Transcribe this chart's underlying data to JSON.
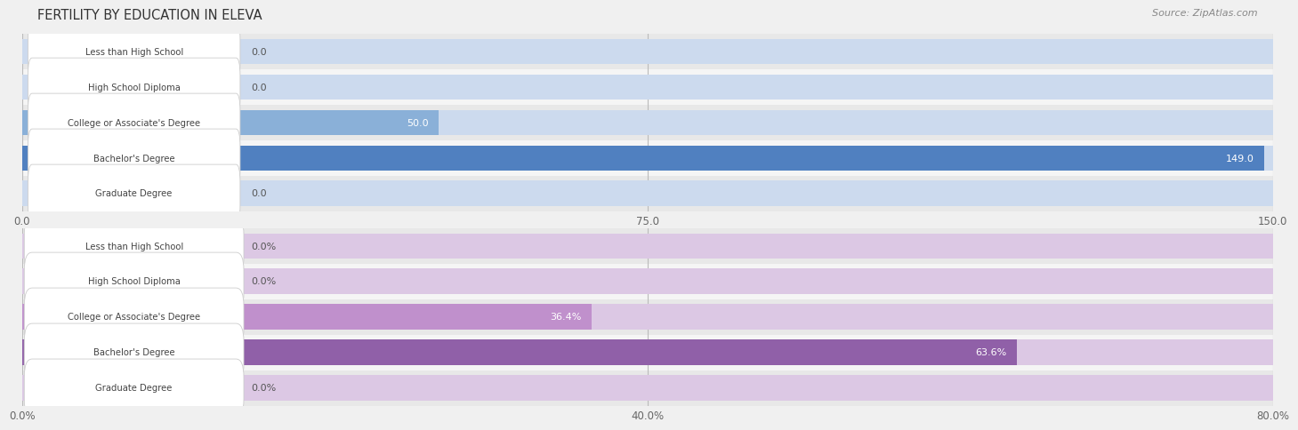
{
  "title": "FERTILITY BY EDUCATION IN ELEVA",
  "source": "Source: ZipAtlas.com",
  "top_chart": {
    "categories": [
      "Less than High School",
      "High School Diploma",
      "College or Associate's Degree",
      "Bachelor's Degree",
      "Graduate Degree"
    ],
    "values": [
      0.0,
      0.0,
      50.0,
      149.0,
      0.0
    ],
    "xlim": [
      0,
      150
    ],
    "xticks": [
      0.0,
      75.0,
      150.0
    ],
    "xtick_labels": [
      "0.0",
      "75.0",
      "150.0"
    ],
    "bar_color_normal": "#8ab0d8",
    "bar_color_highlight": "#5080c0",
    "highlight_index": 3,
    "value_color_inside": "#ffffff",
    "value_color_outside": "#555555",
    "value_labels": [
      "0.0",
      "0.0",
      "50.0",
      "149.0",
      "0.0"
    ]
  },
  "bottom_chart": {
    "categories": [
      "Less than High School",
      "High School Diploma",
      "College or Associate's Degree",
      "Bachelor's Degree",
      "Graduate Degree"
    ],
    "values": [
      0.0,
      0.0,
      36.4,
      63.6,
      0.0
    ],
    "xlim": [
      0,
      80
    ],
    "xticks": [
      0.0,
      40.0,
      80.0
    ],
    "xtick_labels": [
      "0.0%",
      "40.0%",
      "80.0%"
    ],
    "bar_color_normal": "#c090cc",
    "bar_color_highlight": "#9060a8",
    "highlight_index": 3,
    "value_color_inside": "#ffffff",
    "value_color_outside": "#555555",
    "value_labels": [
      "0.0%",
      "0.0%",
      "36.4%",
      "63.6%",
      "0.0%"
    ]
  },
  "bg_color": "#f0f0f0",
  "row_bg_even": "#e8e8e8",
  "row_bg_odd": "#f5f5f5",
  "label_box_color": "#ffffff",
  "label_box_edge": "#cccccc",
  "label_text_color": "#444444",
  "grid_color": "#bbbbbb",
  "title_color": "#333333",
  "tick_color": "#666666",
  "bar_full_bg_top": "#ccdaee",
  "bar_full_bg_bottom": "#dcc8e4"
}
